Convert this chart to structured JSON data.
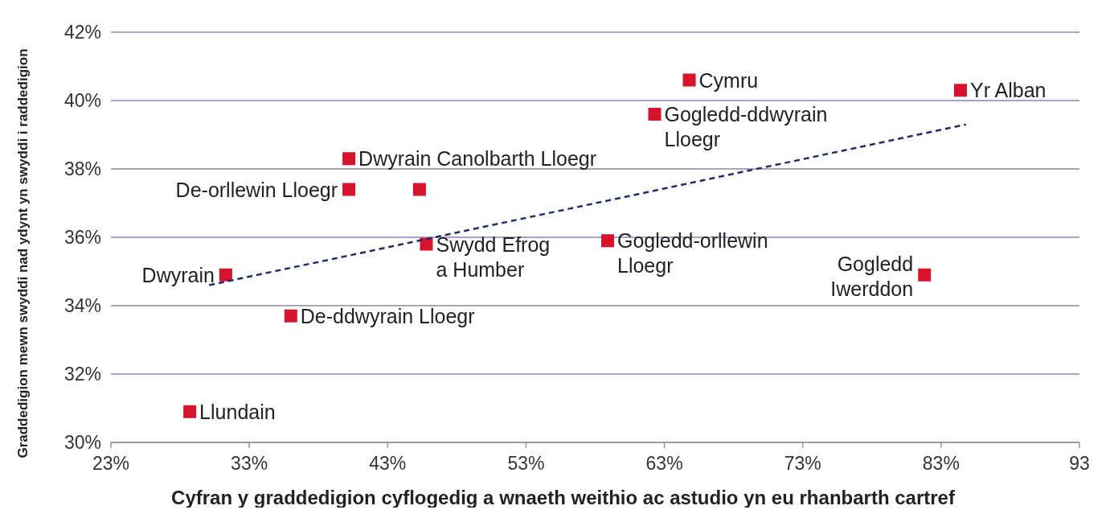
{
  "chart_data": {
    "type": "scatter",
    "xlabel": "Cyfran y graddedigion cyflogedig a wnaeth weithio ac astudio yn eu rhanbarth cartref",
    "ylabel": "Graddedigion mewn swyddi nad ydynt yn swyddi i raddedigion",
    "xlim": [
      23,
      93
    ],
    "xticks": [
      {
        "value": 23,
        "label": "23%"
      },
      {
        "value": 33,
        "label": "33%"
      },
      {
        "value": 43,
        "label": "43%"
      },
      {
        "value": 53,
        "label": "53%"
      },
      {
        "value": 63,
        "label": "63%"
      },
      {
        "value": 73,
        "label": "73%"
      },
      {
        "value": 83,
        "label": "83%"
      },
      93
    ],
    "ylim": [
      30,
      42
    ],
    "yticks": [
      {
        "value": 30,
        "label": "30%"
      },
      {
        "value": 32,
        "label": "32%"
      },
      {
        "value": 34,
        "label": "34%"
      },
      {
        "value": 36,
        "label": "36%"
      },
      {
        "value": 38,
        "label": "38%"
      },
      {
        "value": 40,
        "label": "40%"
      },
      {
        "value": 42,
        "label": "42%"
      }
    ],
    "grid": "y",
    "series": [
      {
        "marker": "square",
        "color": "#d7142b",
        "x": [
          64.8,
          84.4,
          62.3,
          40.2,
          40.2,
          45.3,
          45.8,
          58.9,
          81.8,
          31.3,
          36.0,
          28.7
        ],
        "values": [
          40.6,
          40.3,
          39.6,
          38.3,
          37.4,
          37.4,
          35.8,
          35.9,
          34.9,
          34.9,
          33.7,
          30.9
        ]
      },
      {
        "type": "line",
        "color": "#1f2d6b",
        "line_style": "dashed",
        "x": [
          30.1,
          84.8
        ],
        "values": [
          34.6,
          39.3
        ]
      }
    ],
    "annotations": [
      {
        "text": "Cymru",
        "x": 64.8,
        "y": 40.6
      },
      {
        "text": "Yr Alban",
        "x": 84.4,
        "y": 40.3
      },
      {
        "text": "Gogledd-ddwyrain\nLloegr",
        "x": 62.3,
        "y": 39.6
      },
      {
        "text": "Dwyrain Canolbarth Lloegr",
        "x": 40.2,
        "y": 38.3
      },
      {
        "text": "De-orllewin Lloegr",
        "x": 40.2,
        "y": 37.4
      },
      {
        "text": "Swydd Efrog\na Humber",
        "x": 45.8,
        "y": 35.8
      },
      {
        "text": "Gogledd-orllewin\nLloegr",
        "x": 58.9,
        "y": 35.9
      },
      {
        "text": "Gogledd\nIwerddon",
        "x": 81.8,
        "y": 34.9
      },
      {
        "text": "Dwyrain",
        "x": 31.3,
        "y": 34.9
      },
      {
        "text": "De-ddwyrain Lloegr",
        "x": 36.0,
        "y": 33.7
      },
      {
        "text": "Llundain",
        "x": 28.7,
        "y": 30.9
      }
    ]
  }
}
